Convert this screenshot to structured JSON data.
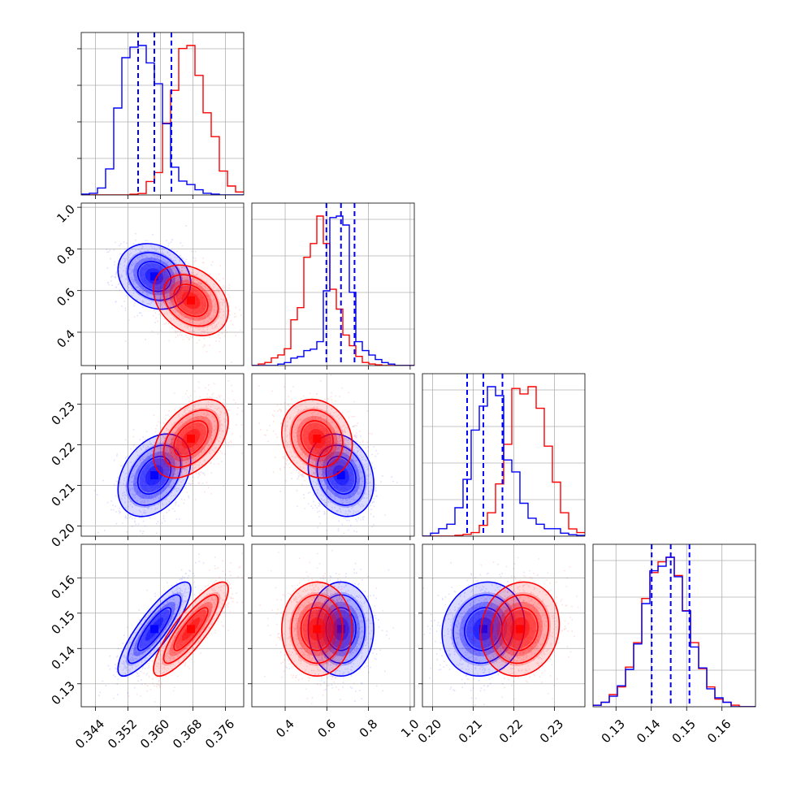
{
  "colors": {
    "blue": "#0000ff",
    "red": "#ff0000",
    "grid": "#b0b0b0"
  },
  "chart_data": {
    "type": "corner",
    "grid": true,
    "n_params": 4,
    "ranges": [
      [
        0.3405,
        0.3805
      ],
      [
        0.24,
        1.02
      ],
      [
        0.1975,
        0.2375
      ],
      [
        0.1235,
        0.1695
      ]
    ],
    "ticks": {
      "p0": [
        "0.344",
        "0.352",
        "0.360",
        "0.368",
        "0.376"
      ],
      "p1": [
        "0.4",
        "0.6",
        "0.8",
        "1.0"
      ],
      "p2": [
        "0.20",
        "0.21",
        "0.22",
        "0.23"
      ],
      "p3": [
        "0.13",
        "0.14",
        "0.15",
        "0.16"
      ]
    },
    "series": [
      {
        "color": "blue",
        "mean": [
          0.3585,
          0.668,
          0.2125,
          0.1455
        ],
        "std": [
          0.0037,
          0.065,
          0.0042,
          0.0055
        ],
        "correlations": {
          "1-0": -0.2,
          "2-0": 0.35,
          "3-0": 0.85,
          "2-1": -0.2,
          "3-1": 0.0,
          "3-2": 0.1
        },
        "quantiles": [
          [
            0.3545,
            0.3585,
            0.3627
          ],
          [
            0.598,
            0.668,
            0.733
          ],
          [
            0.2085,
            0.2125,
            0.2172
          ],
          [
            0.1401,
            0.1455,
            0.1508
          ]
        ],
        "hist": [
          [
            0.005,
            0.01,
            0.04,
            0.15,
            0.5,
            0.79,
            0.85,
            0.86,
            0.76,
            0.64,
            0.41,
            0.16,
            0.08,
            0.06,
            0.03,
            0.01,
            0.005,
            0,
            0,
            0
          ],
          [
            0,
            0,
            0,
            0,
            0.01,
            0.02,
            0.05,
            0.06,
            0.1,
            0.11,
            0.16,
            0.5,
            0.99,
            1.0,
            0.94,
            0.49,
            0.16,
            0.1,
            0.07,
            0.04,
            0.02,
            0.01,
            0,
            0,
            0
          ],
          [
            0,
            0.02,
            0.05,
            0.08,
            0.19,
            0.38,
            0.71,
            0.87,
            1.0,
            0.94,
            0.51,
            0.43,
            0.22,
            0.12,
            0.08,
            0.05,
            0.05,
            0.02,
            0.01,
            0.005
          ],
          [
            0.01,
            0.03,
            0.07,
            0.14,
            0.25,
            0.42,
            0.69,
            0.91,
            0.94,
            1.0,
            0.87,
            0.64,
            0.4,
            0.26,
            0.12,
            0.06,
            0.03,
            0,
            0,
            0
          ]
        ]
      },
      {
        "color": "red",
        "mean": [
          0.3675,
          0.553,
          0.2215,
          0.1455
        ],
        "std": [
          0.0038,
          0.07,
          0.004,
          0.0055
        ],
        "correlations": {
          "1-0": -0.3,
          "2-0": 0.45,
          "3-0": 0.85,
          "2-1": -0.15,
          "3-1": 0.0,
          "3-2": 0.1
        },
        "hist": [
          [
            0,
            0,
            0,
            0,
            0,
            0,
            0.005,
            0.01,
            0.09,
            0.15,
            0.48,
            0.7,
            0.98,
            1.0,
            0.8,
            0.55,
            0.39,
            0.16,
            0.06,
            0.02
          ],
          [
            0,
            0.01,
            0.02,
            0.05,
            0.07,
            0.11,
            0.3,
            0.38,
            0.71,
            0.8,
            0.98,
            0.8,
            0.5,
            0.37,
            0.2,
            0.13,
            0.06,
            0.02,
            0.01,
            0.005,
            0,
            0,
            0,
            0,
            0
          ],
          [
            0,
            0,
            0,
            0,
            0.005,
            0.01,
            0.02,
            0.06,
            0.13,
            0.29,
            0.51,
            0.82,
            0.79,
            0.83,
            0.71,
            0.5,
            0.3,
            0.13,
            0.04,
            0.02
          ],
          [
            0.01,
            0.03,
            0.08,
            0.13,
            0.26,
            0.42,
            0.71,
            0.88,
            0.95,
            0.98,
            0.86,
            0.63,
            0.42,
            0.25,
            0.13,
            0.05,
            0.03,
            0.01,
            0,
            0
          ]
        ]
      }
    ]
  }
}
